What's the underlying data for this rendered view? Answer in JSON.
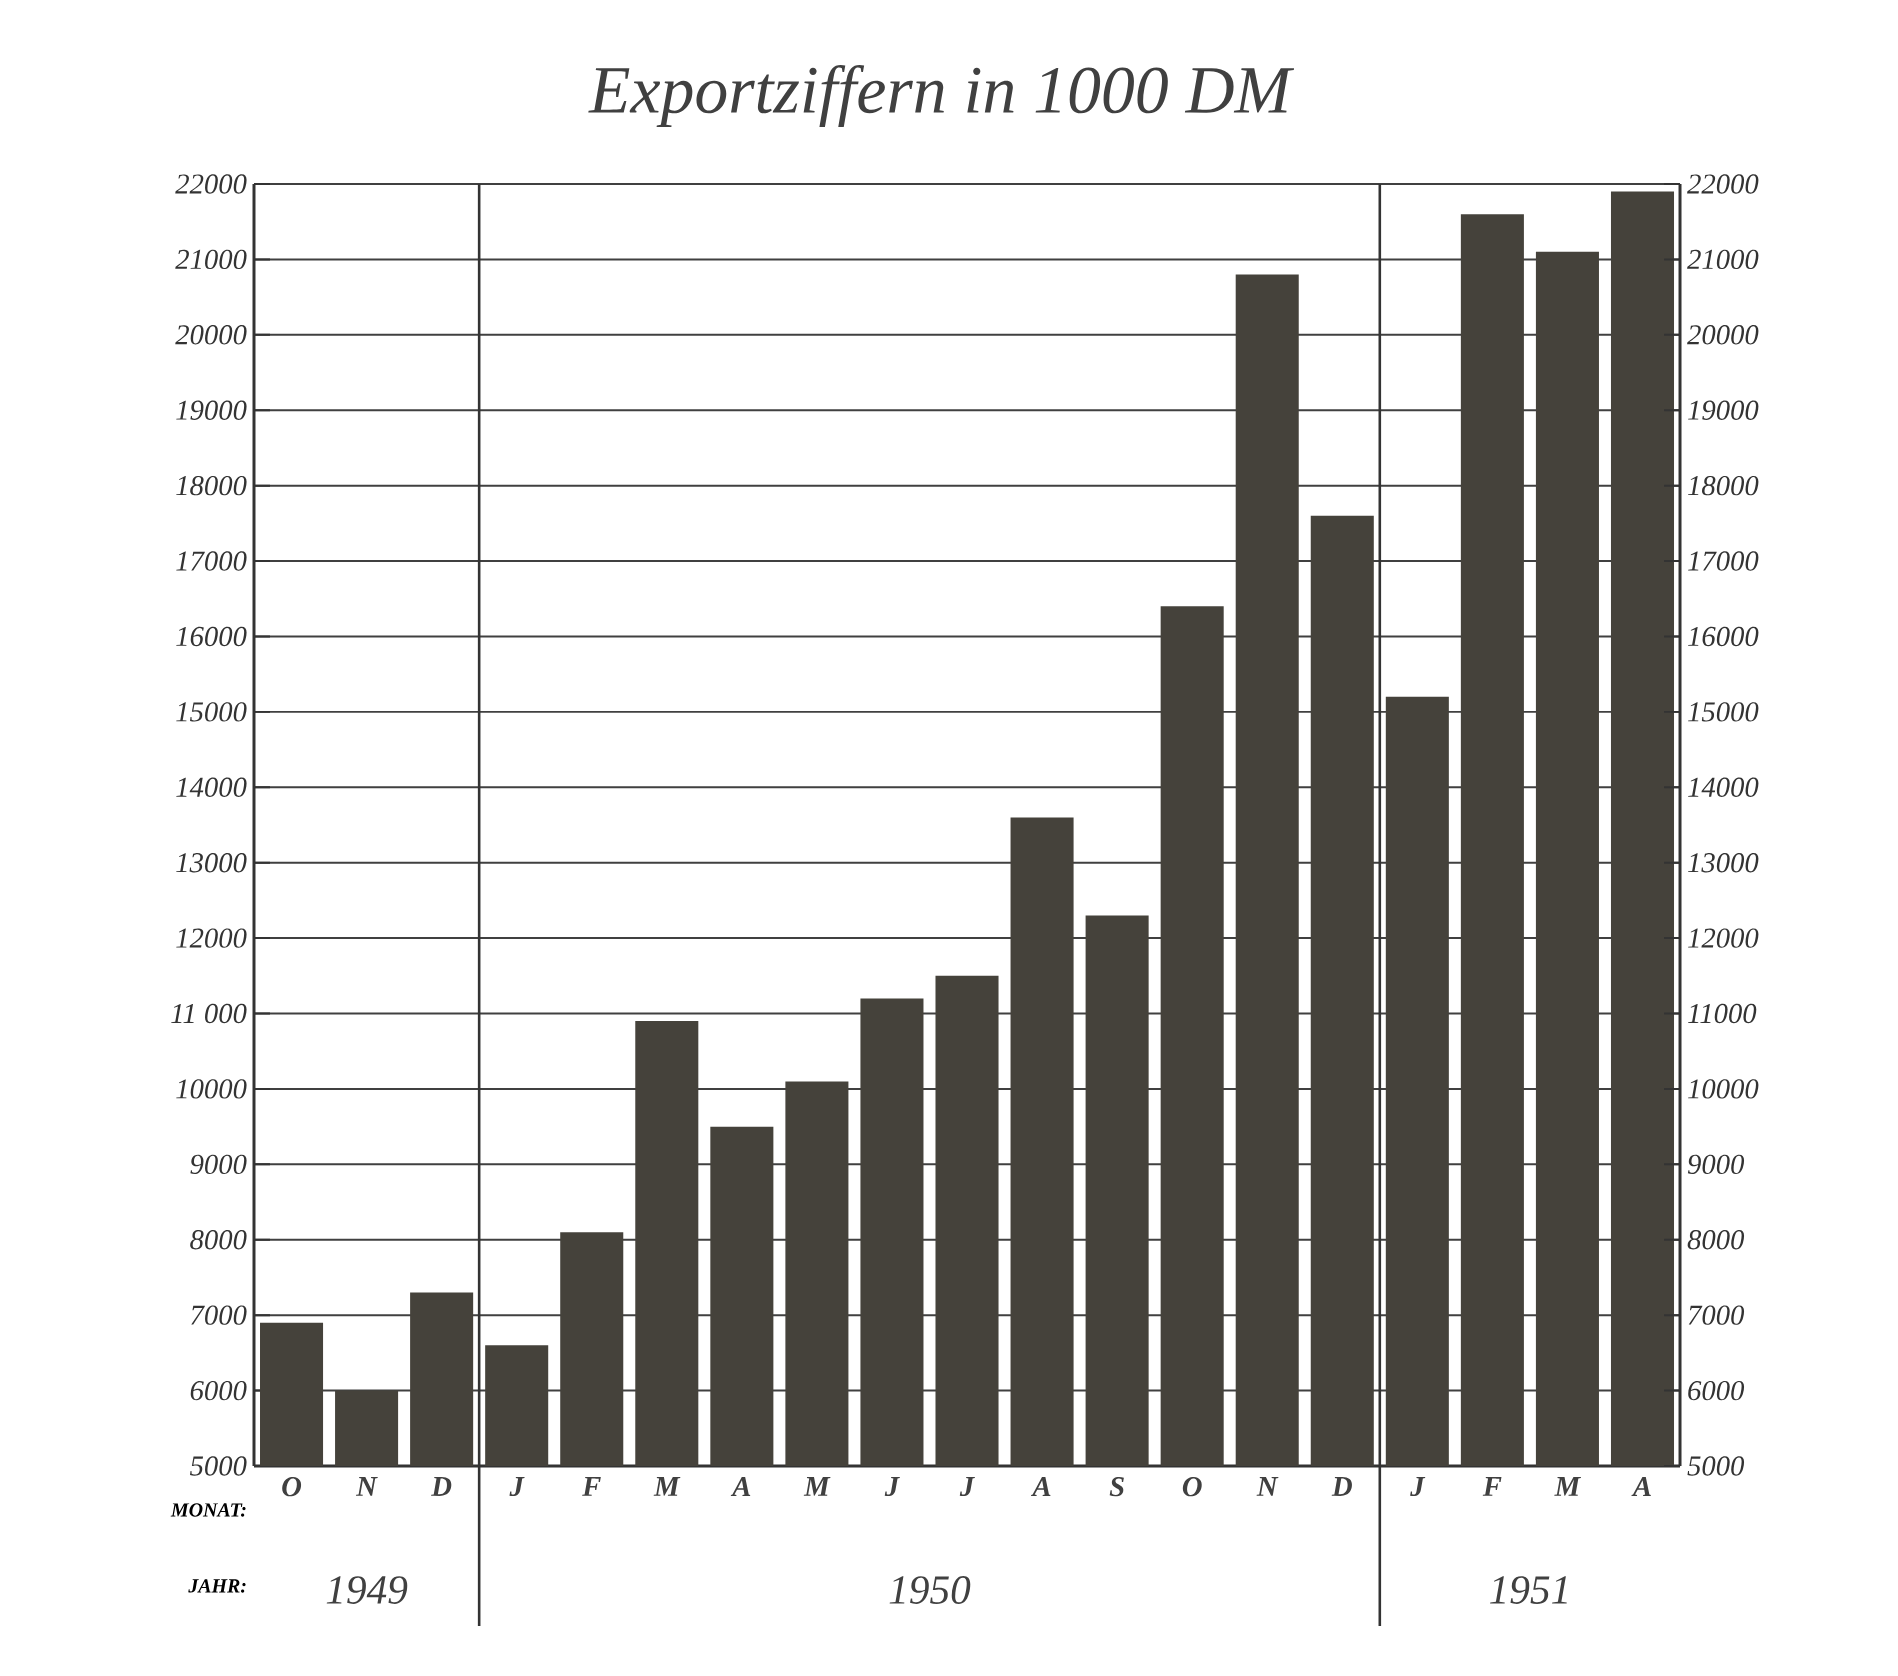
{
  "chart_data": {
    "type": "bar",
    "title": "Exportziffern in 1000 DM",
    "categories": [
      "O",
      "N",
      "D",
      "J",
      "F",
      "M",
      "A",
      "M",
      "J",
      "J",
      "A",
      "S",
      "O",
      "N",
      "D",
      "J",
      "F",
      "M",
      "A"
    ],
    "values": [
      6900,
      6000,
      7300,
      6600,
      8100,
      10900,
      9500,
      10100,
      11200,
      11500,
      13600,
      12300,
      16400,
      20800,
      17600,
      15200,
      21600,
      21100,
      21900
    ],
    "color": "#45423b",
    "ylim": [
      5000,
      22000
    ],
    "yticks": [
      5000,
      6000,
      7000,
      8000,
      9000,
      10000,
      {
        "value": 11000,
        "label": "11 000"
      },
      12000,
      13000,
      14000,
      15000,
      16000,
      17000,
      18000,
      19000,
      20000,
      21000,
      22000
    ],
    "y2lim": [
      5000,
      22000
    ],
    "y2ticks": [
      5000,
      6000,
      7000,
      8000,
      9000,
      10000,
      11000,
      12000,
      13000,
      14000,
      15000,
      16000,
      17000,
      18000,
      19000,
      20000,
      21000,
      22000
    ],
    "grid": "y",
    "annotations": [
      "MONAT:",
      "JAHR:",
      "1949",
      "1950",
      "1951"
    ]
  }
}
